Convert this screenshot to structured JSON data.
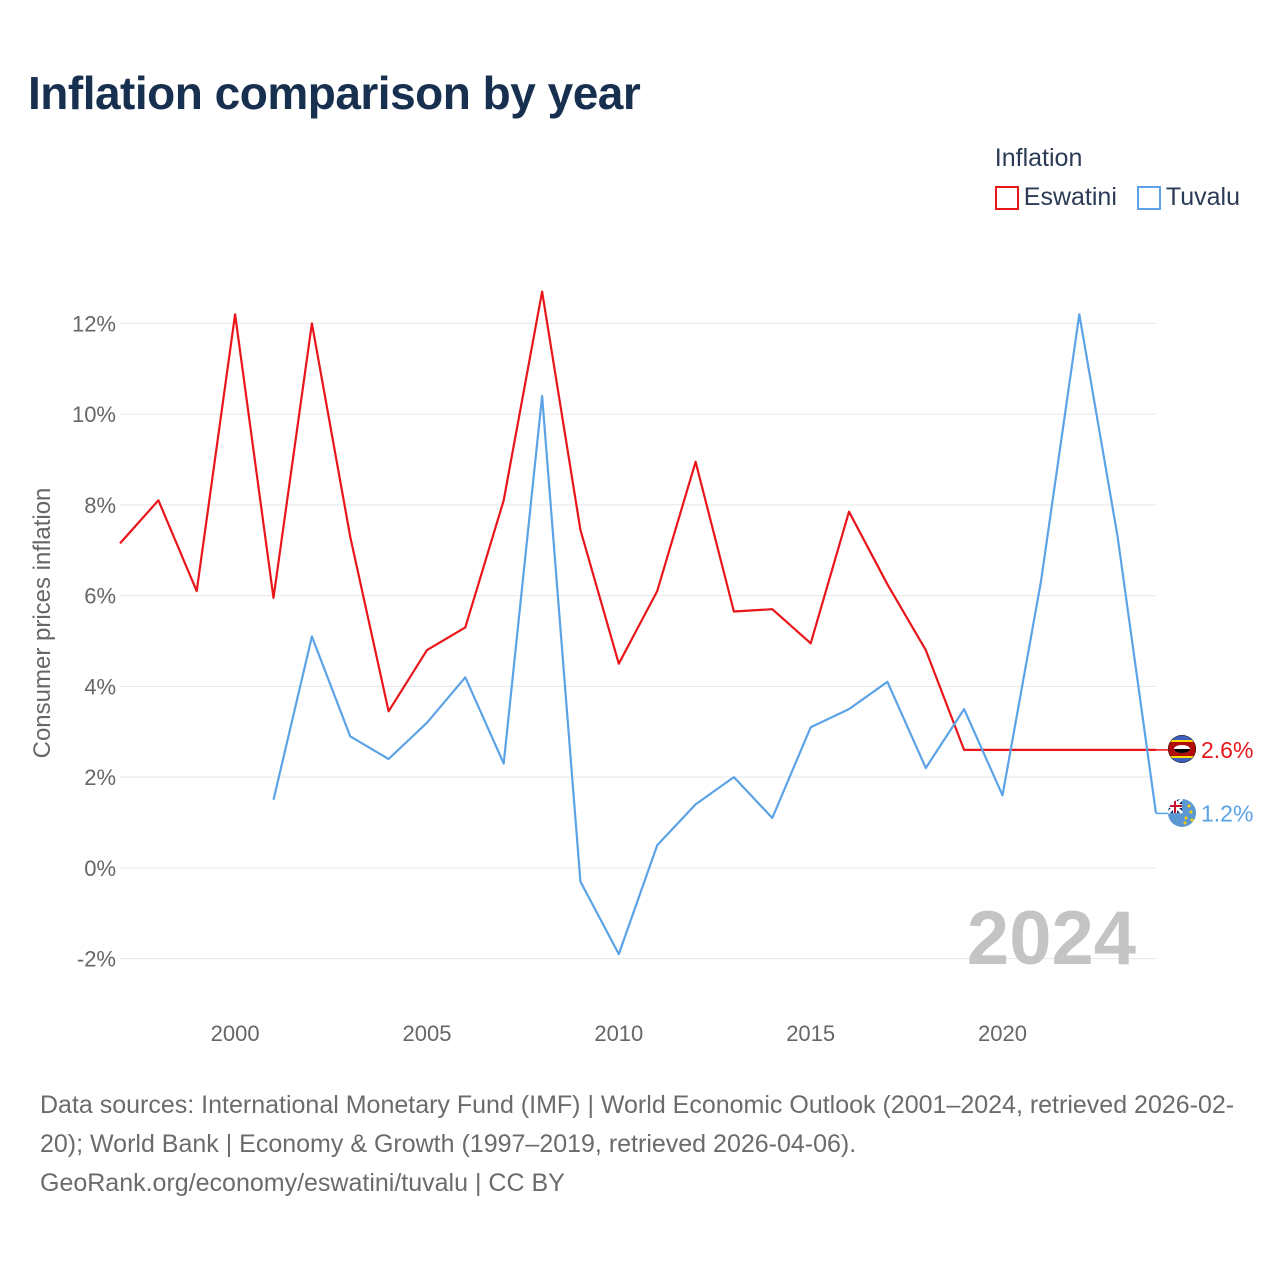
{
  "title": "Inflation comparison by year",
  "legend": {
    "title": "Inflation",
    "items": [
      {
        "label": "Eswatini",
        "color": "#e8161b"
      },
      {
        "label": "Tuvalu",
        "color": "#5ba3e6"
      }
    ]
  },
  "year_watermark": "2024",
  "footer": {
    "sources": "Data sources: International Monetary Fund (IMF) | World Economic Outlook (2001–2024, retrieved 2026-02-20); World Bank | Economy & Growth (1997–2019, retrieved 2026-04-06).",
    "credit": "GeoRank.org/economy/eswatini/tuvalu | CC BY"
  },
  "chart_data": {
    "type": "line",
    "title": "Inflation comparison by year",
    "xlabel": "",
    "ylabel": "Consumer prices inflation",
    "xlim": [
      1997,
      2024
    ],
    "ylim": [
      -3,
      13
    ],
    "x_ticks": [
      2000,
      2005,
      2010,
      2015,
      2020
    ],
    "y_ticks": [
      -2,
      0,
      2,
      4,
      6,
      8,
      10,
      12
    ],
    "y_tick_labels": [
      "-2%",
      "0%",
      "2%",
      "4%",
      "6%",
      "8%",
      "10%",
      "12%"
    ],
    "grid": true,
    "legend_position": "top-right",
    "series": [
      {
        "name": "Eswatini",
        "color": "#e8161b",
        "x": [
          1997,
          1998,
          1999,
          2000,
          2001,
          2002,
          2003,
          2004,
          2005,
          2006,
          2007,
          2008,
          2009,
          2010,
          2011,
          2012,
          2013,
          2014,
          2015,
          2016,
          2017,
          2018,
          2019,
          2024
        ],
        "values": [
          7.15,
          8.1,
          6.1,
          12.2,
          5.95,
          12.0,
          7.3,
          3.45,
          4.8,
          5.3,
          8.1,
          12.7,
          7.45,
          4.5,
          6.1,
          8.95,
          5.65,
          5.7,
          4.95,
          7.85,
          6.25,
          4.8,
          2.6,
          2.6
        ],
        "end_label": "2.6%"
      },
      {
        "name": "Tuvalu",
        "color": "#5ba3e6",
        "x": [
          2001,
          2002,
          2003,
          2004,
          2005,
          2006,
          2007,
          2008,
          2009,
          2010,
          2011,
          2012,
          2013,
          2014,
          2015,
          2016,
          2017,
          2018,
          2019,
          2020,
          2021,
          2022,
          2023,
          2024
        ],
        "values": [
          1.5,
          5.1,
          2.9,
          2.4,
          3.2,
          4.2,
          2.3,
          10.4,
          -0.3,
          -1.9,
          0.5,
          1.4,
          2.0,
          1.1,
          3.1,
          3.5,
          4.1,
          2.2,
          3.5,
          1.6,
          6.3,
          12.2,
          7.3,
          1.2
        ],
        "end_label": "1.2%"
      }
    ]
  }
}
